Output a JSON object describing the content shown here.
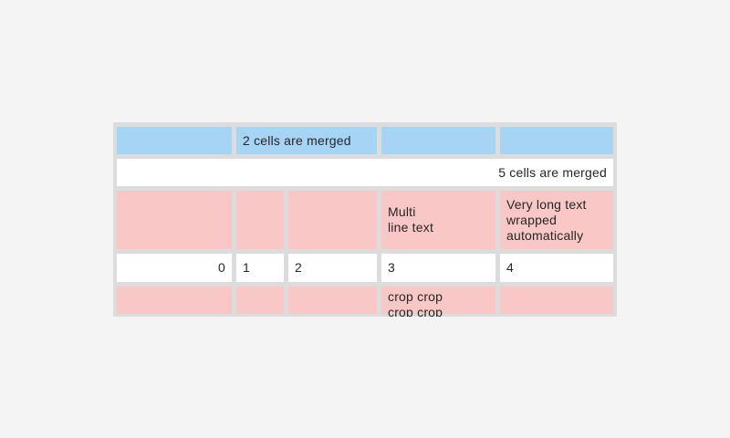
{
  "colors": {
    "page_background": "#f4f4f4",
    "grid_gutter": "#dcdcdc",
    "cell_blue": "#a5d4f5",
    "cell_pink": "#f9c7c6",
    "cell_white": "#ffffff",
    "text": "#262626"
  },
  "table": {
    "row_blue": {
      "cell0": "",
      "merged2_label": "2 cells are merged",
      "cell3": "",
      "cell4": ""
    },
    "row_merged5": {
      "label": "5 cells are merged"
    },
    "row_pink_top": {
      "cell0": "",
      "cell1": "",
      "cell2": "",
      "multiline_label": "Multi\nline text",
      "wrapped_label": "Very long text wrapped automatically"
    },
    "row_numbers": {
      "values": [
        "0",
        "1",
        "2",
        "3",
        "4"
      ]
    },
    "row_pink_bottom": {
      "cell0": "",
      "cell1": "",
      "cell2": "",
      "crop_label": "crop crop\ncrop crop",
      "cell4": ""
    }
  }
}
